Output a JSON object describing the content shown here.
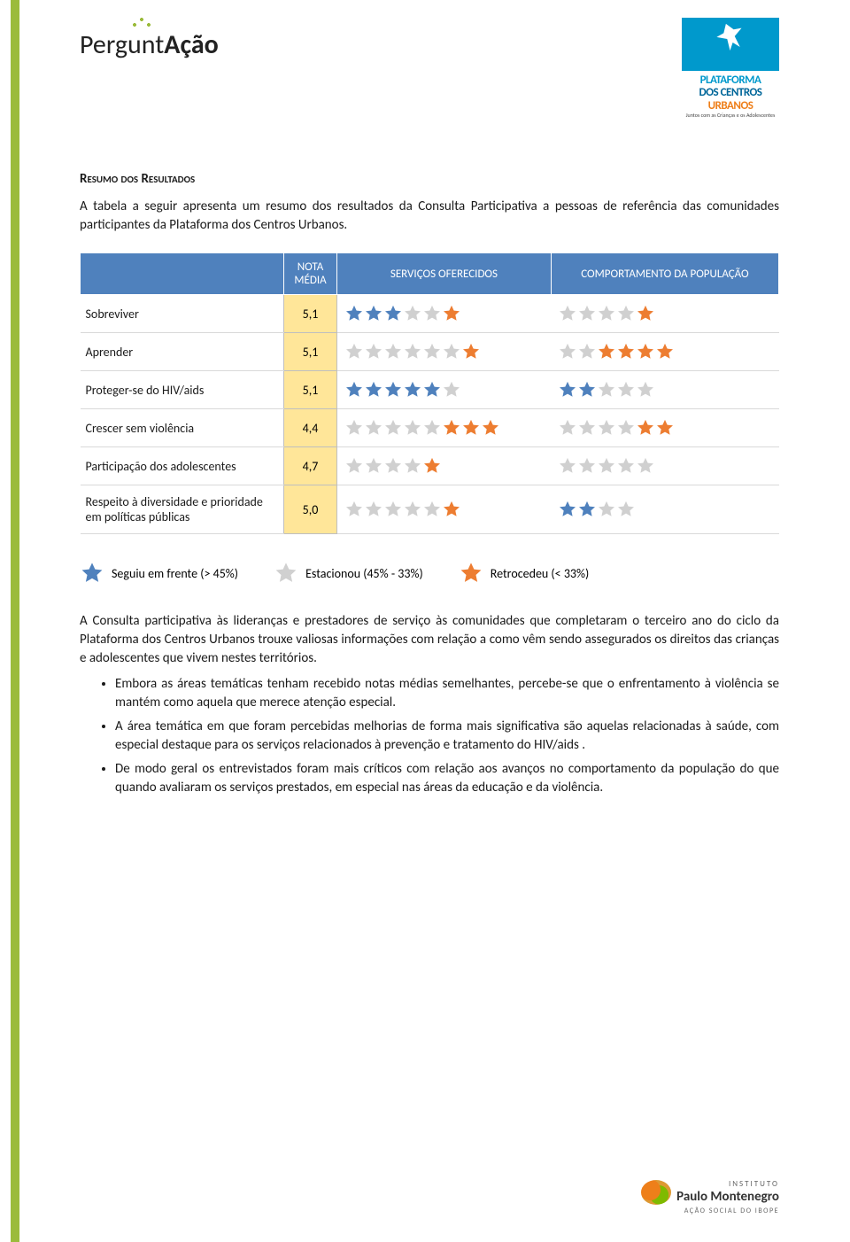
{
  "colors": {
    "sidebar": "#9bbb3c",
    "header_bg": "#4f81bd",
    "nota_bg": "#ffe699",
    "star_blue": "#4f81bd",
    "star_orange": "#ed7d31",
    "star_grey": "#d0d0d0"
  },
  "logos": {
    "perguntacao": {
      "pre": "Pergunt",
      "bold": "Ação"
    },
    "pcu": {
      "line1": "PLATAFORMA",
      "line2": "DOS CENTROS",
      "line3": "URBANOS",
      "sub": "Juntos com as Crianças e os Adolescentes"
    }
  },
  "title": "Resumo dos Resultados",
  "intro": "A tabela a seguir apresenta um resumo dos resultados da Consulta Participativa a pessoas de referência das comunidades participantes da Plataforma dos Centros Urbanos.",
  "table": {
    "headers": {
      "label": "",
      "nota": "NOTA MÉDIA",
      "serv": "SERVIÇOS OFERECIDOS",
      "comp": "COMPORTAMENTO DA POPULAÇÃO"
    },
    "rows": [
      {
        "label": "Sobreviver",
        "nota": "5,1",
        "serv": [
          "b",
          "b",
          "b",
          "g",
          "g",
          "o"
        ],
        "comp": [
          "g",
          "g",
          "g",
          "g",
          "o"
        ]
      },
      {
        "label": "Aprender",
        "nota": "5,1",
        "serv": [
          "g",
          "g",
          "g",
          "g",
          "g",
          "g",
          "o"
        ],
        "comp": [
          "g",
          "g",
          "o",
          "o",
          "o",
          "o"
        ]
      },
      {
        "label": "Proteger-se do HIV/aids",
        "nota": "5,1",
        "serv": [
          "b",
          "b",
          "b",
          "b",
          "b",
          "g"
        ],
        "comp": [
          "b",
          "b",
          "g",
          "g",
          "g"
        ]
      },
      {
        "label": "Crescer sem violência",
        "nota": "4,4",
        "serv": [
          "g",
          "g",
          "g",
          "g",
          "g",
          "o",
          "o",
          "o"
        ],
        "comp": [
          "g",
          "g",
          "g",
          "g",
          "o",
          "o"
        ]
      },
      {
        "label": "Participação dos adolescentes",
        "nota": "4,7",
        "serv": [
          "g",
          "g",
          "g",
          "g",
          "o"
        ],
        "comp": [
          "g",
          "g",
          "g",
          "g",
          "g"
        ]
      },
      {
        "label": "Respeito à diversidade e prioridade em políticas públicas",
        "nota": "5,0",
        "serv": [
          "g",
          "g",
          "g",
          "g",
          "g",
          "o"
        ],
        "comp": [
          "b",
          "b",
          "g",
          "g"
        ]
      }
    ]
  },
  "legend": {
    "forward": "Seguiu em frente (> 45%)",
    "stable": "Estacionou (45% - 33%)",
    "back": "Retrocedeu (< 33%)"
  },
  "body_para": "A Consulta participativa às lideranças e prestadores de serviço às comunidades que completaram o terceiro ano do ciclo da Plataforma dos Centros Urbanos trouxe valiosas informações com relação a como vêm sendo assegurados os direitos das crianças e adolescentes que vivem nestes territórios.",
  "bullets": [
    "Embora as áreas temáticas tenham recebido notas médias semelhantes, percebe-se que o enfrentamento à violência se mantém como aquela que merece atenção especial.",
    "A área temática em que foram percebidas melhorias de forma mais significativa são aquelas relacionadas à saúde, com especial destaque para os serviços relacionados à prevenção e tratamento do HIV/aids .",
    "De modo geral os entrevistados foram mais críticos com relação aos avanços no comportamento da população do que quando avaliaram os serviços prestados, em especial nas áreas da educação e da violência."
  ],
  "footer": {
    "inst": "INSTITUTO",
    "name": "Paulo Montenegro",
    "tag": "AÇÃO SOCIAL DO IBOPE"
  }
}
